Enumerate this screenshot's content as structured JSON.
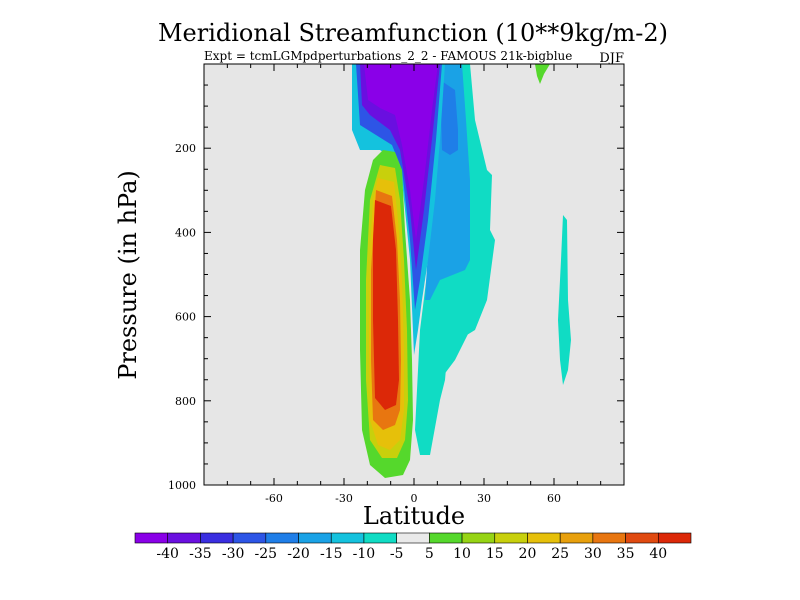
{
  "chart_data": {
    "type": "heatmap",
    "title": "Meridional Streamfunction (10**9kg/m-2)",
    "subtitle_left": "Expt = tcmLGMpdperturbations_2_2 - FAMOUS 21k-bigblue",
    "subtitle_right": "DJF",
    "xlabel": "Latitude",
    "ylabel": "Pressure (in hPa)",
    "xlim": [
      -90,
      90
    ],
    "ylim": [
      0,
      1000
    ],
    "y_inverted": true,
    "x_ticks": [
      "-60",
      "-30",
      "0",
      "30",
      "60"
    ],
    "x_tick_values": [
      -60,
      -30,
      0,
      30,
      60
    ],
    "y_ticks": [
      "200",
      "400",
      "600",
      "800",
      "1000"
    ],
    "y_tick_values": [
      200,
      400,
      600,
      800,
      1000
    ],
    "background_color": "#e6e6e6",
    "colorbar": {
      "levels": [
        "-40",
        "-35",
        "-30",
        "-25",
        "-20",
        "-15",
        "-10",
        "-5",
        "5",
        "10",
        "15",
        "20",
        "25",
        "30",
        "35",
        "40"
      ],
      "colors": [
        "#8a00e8",
        "#6a0fe0",
        "#3a2ee0",
        "#2d55e6",
        "#1f7ee8",
        "#1aa2e6",
        "#14c2de",
        "#10dcc4",
        "#eaeaea",
        "#55d82c",
        "#96d414",
        "#c8d00c",
        "#e6c00a",
        "#e8a00c",
        "#e87610",
        "#e04a10",
        "#dc2808"
      ]
    },
    "features": [
      {
        "name": "southern-hadley-cell",
        "sign": "positive",
        "lat_range": [
          -18,
          -5
        ],
        "pressure_range": [
          300,
          980
        ],
        "max": 40
      },
      {
        "name": "northern-upper-cell",
        "sign": "negative",
        "lat_range": [
          -15,
          15
        ],
        "pressure_range": [
          0,
          650
        ],
        "min": -40
      },
      {
        "name": "northern-weak-cell",
        "sign": "negative",
        "lat_range": [
          5,
          28
        ],
        "pressure_range": [
          0,
          920
        ],
        "min": -20
      },
      {
        "name": "high-latitude-cell",
        "sign": "negative",
        "lat_range": [
          60,
          65
        ],
        "pressure_range": [
          340,
          770
        ],
        "min": -10
      },
      {
        "name": "upper-positive-patch",
        "sign": "positive",
        "lat_range": [
          52,
          57
        ],
        "pressure_range": [
          0,
          40
        ],
        "max": 10
      }
    ]
  }
}
